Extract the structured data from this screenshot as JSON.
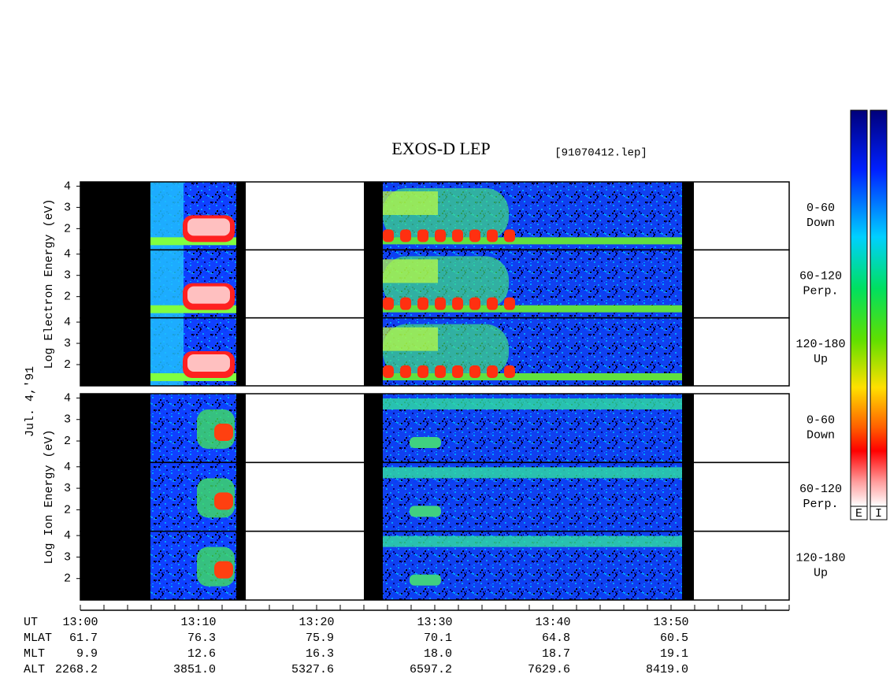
{
  "header": {
    "title": "EXOS-D LEP",
    "file": "[91070412.lep]"
  },
  "date": "Jul. 4,'91",
  "ylim": [
    1,
    4.2
  ],
  "panels": [
    {
      "ylabel": "Log Electron Energy (eV)",
      "subpanels": [
        {
          "angle": "0-60",
          "direction": "Down",
          "yticks": [
            2,
            3,
            4
          ]
        },
        {
          "angle": "60-120",
          "direction": "Perp.",
          "yticks": [
            2,
            3,
            4
          ]
        },
        {
          "angle": "120-180",
          "direction": "Up",
          "yticks": [
            2,
            3,
            4
          ]
        }
      ]
    },
    {
      "ylabel": "Log Ion Energy (eV)",
      "subpanels": [
        {
          "angle": "0-60",
          "direction": "Down",
          "yticks": [
            2,
            3,
            4
          ]
        },
        {
          "angle": "60-120",
          "direction": "Perp.",
          "yticks": [
            2,
            3,
            4
          ]
        },
        {
          "angle": "120-180",
          "direction": "Up",
          "yticks": [
            2,
            3,
            4
          ]
        }
      ]
    }
  ],
  "time_axis": {
    "rows": [
      {
        "name": "UT",
        "values": [
          "13:00",
          "13:10",
          "13:20",
          "13:30",
          "13:40",
          "13:50"
        ]
      },
      {
        "name": "MLAT",
        "values": [
          61.7,
          76.3,
          75.9,
          70.1,
          64.8,
          60.5
        ]
      },
      {
        "name": "MLT",
        "values": [
          9.9,
          12.6,
          16.3,
          "18.0",
          18.7,
          19.1
        ]
      },
      {
        "name": "ALT",
        "values": [
          2268.2,
          "3851.0",
          5327.6,
          6597.2,
          7629.6,
          "8419.0"
        ]
      }
    ]
  },
  "colorbars": [
    "E",
    "I"
  ]
}
